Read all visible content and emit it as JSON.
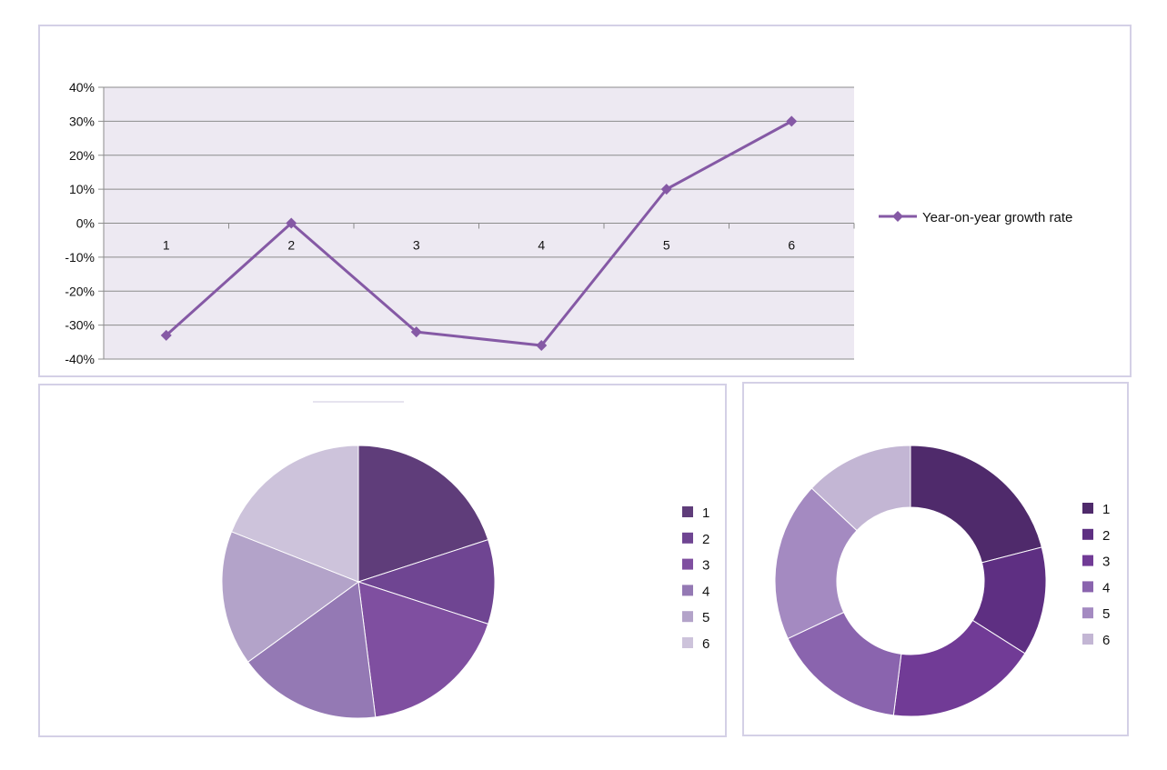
{
  "colors": {
    "plot_bg": "#ede9f2",
    "grid": "#8c8c8c",
    "line": "#8559a5",
    "slices": [
      "#5f3d7a",
      "#6f4592",
      "#7f4fa0",
      "#9479b4",
      "#b3a3c9",
      "#cdc3db"
    ],
    "donut_slices": [
      "#4f2a6b",
      "#5e2f82",
      "#713b96",
      "#8a64ae",
      "#a48ac1",
      "#c3b6d4"
    ]
  },
  "chart_data": [
    {
      "type": "line",
      "title": "",
      "xlabel": "",
      "ylabel": "",
      "x": [
        "1",
        "2",
        "3",
        "4",
        "5",
        "6"
      ],
      "series": [
        {
          "name": "Year-on-year growth rate",
          "values": [
            -0.33,
            0.0,
            -0.32,
            -0.36,
            0.1,
            0.3
          ]
        }
      ],
      "ylim": [
        -0.4,
        0.4
      ],
      "yticks": [
        "40%",
        "30%",
        "20%",
        "10%",
        "0%",
        "-10%",
        "-20%",
        "-30%",
        "-40%"
      ],
      "grid": true,
      "legend": "right",
      "marker": "diamond"
    },
    {
      "type": "pie",
      "title": "",
      "categories": [
        "1",
        "2",
        "3",
        "4",
        "5",
        "6"
      ],
      "values": [
        20,
        10,
        18,
        17,
        16,
        19
      ],
      "legend": "right"
    },
    {
      "type": "pie",
      "variant": "doughnut",
      "title": "",
      "categories": [
        "1",
        "2",
        "3",
        "4",
        "5",
        "6"
      ],
      "values": [
        21,
        13,
        18,
        16,
        19,
        13
      ],
      "legend": "right"
    }
  ]
}
